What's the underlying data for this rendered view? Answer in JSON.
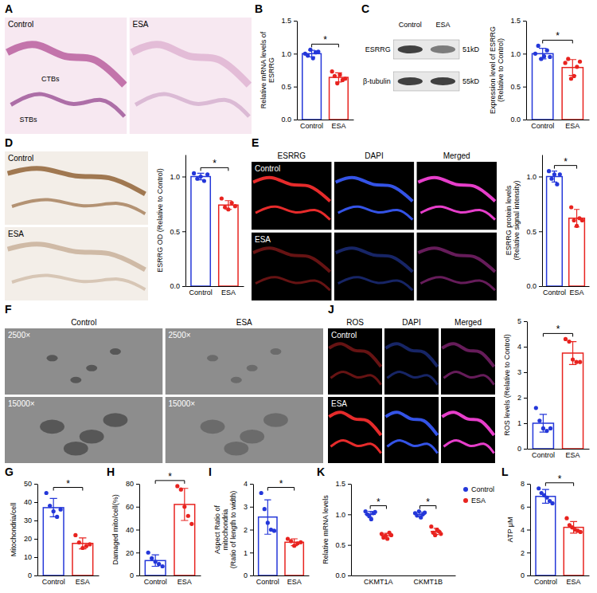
{
  "chart_data": [
    {
      "panel": "B",
      "type": "bar",
      "ylabel": "Relative mRNA levels of ESRRG",
      "categories": [
        "Control",
        "ESA"
      ],
      "values": [
        1.0,
        0.64
      ],
      "errors": [
        0.05,
        0.07
      ],
      "points": [
        [
          1.0,
          0.97,
          1.06,
          0.93,
          1.02,
          1.03
        ],
        [
          0.73,
          0.66,
          0.55,
          0.68,
          0.6,
          0.62
        ]
      ],
      "colors": [
        "#2437d9",
        "#e8231f"
      ],
      "ylim": [
        0,
        1.5
      ],
      "yticks": [
        {
          "value": 0,
          "label": "0.0"
        },
        0.5,
        {
          "value": 1,
          "label": "1.0"
        },
        1.5
      ],
      "significance": "*"
    },
    {
      "type": "bar",
      "ylabel": "Expression level of ESRRG (Relative to Control)",
      "categories": [
        "Control",
        "ESA"
      ],
      "values": [
        1.0,
        0.79
      ],
      "errors": [
        0.08,
        0.12
      ],
      "points": [
        [
          1.0,
          1.12,
          0.92,
          0.96,
          1.05,
          0.95
        ],
        [
          0.86,
          0.92,
          0.62,
          0.66,
          0.8,
          0.88
        ]
      ],
      "colors": [
        "#2437d9",
        "#e8231f"
      ],
      "ylim": [
        0,
        1.5
      ],
      "yticks": [
        {
          "value": 0,
          "label": "0.0"
        },
        0.5,
        {
          "value": 1,
          "label": "1.0"
        },
        1.5
      ],
      "significance": "*"
    },
    {
      "type": "bar",
      "ylabel": "ESRRG OD (Relative to Control)",
      "categories": [
        "Control",
        "ESA"
      ],
      "values": [
        1.0,
        0.74
      ],
      "errors": [
        0.03,
        0.04
      ],
      "points": [
        [
          1.03,
          0.98,
          1.0,
          0.96,
          1.02
        ],
        [
          0.8,
          0.72,
          0.7,
          0.76,
          0.73
        ]
      ],
      "colors": [
        "#2437d9",
        "#e8231f"
      ],
      "ylim": [
        0,
        1.2
      ],
      "yticks": [
        {
          "value": 0,
          "label": "0.0"
        },
        0.5,
        {
          "value": 1,
          "label": "1.0"
        }
      ],
      "significance": "*"
    },
    {
      "type": "bar",
      "ylabel": "ESRRG protein levels (Relative signal intensity)",
      "categories": [
        "Control",
        "ESA"
      ],
      "values": [
        1.0,
        0.62
      ],
      "errors": [
        0.05,
        0.08
      ],
      "points": [
        [
          1.05,
          0.98,
          1.02,
          0.93,
          1.02
        ],
        [
          0.72,
          0.6,
          0.55,
          0.62,
          0.6
        ]
      ],
      "colors": [
        "#2437d9",
        "#e8231f"
      ],
      "ylim": [
        0,
        1.2
      ],
      "yticks": [
        {
          "value": 0,
          "label": "0.0"
        },
        0.5,
        {
          "value": 1,
          "label": "1.0"
        }
      ],
      "significance": "*"
    },
    {
      "panel": "G",
      "type": "bar",
      "ylabel": "Mitochondria/cell",
      "categories": [
        "Control",
        "ESA"
      ],
      "values": [
        37,
        17.5
      ],
      "errors": [
        5,
        3
      ],
      "points": [
        [
          45,
          38,
          35,
          32,
          36
        ],
        [
          22,
          18,
          15,
          16,
          17
        ]
      ],
      "colors": [
        "#2437d9",
        "#e8231f"
      ],
      "ylim": [
        0,
        50
      ],
      "yticks": [
        0,
        10,
        20,
        30,
        40,
        50
      ],
      "significance": "*"
    },
    {
      "panel": "H",
      "type": "bar",
      "ylabel": "Damaged mito/cell(%)",
      "categories": [
        "Control",
        "ESA"
      ],
      "values": [
        13,
        62
      ],
      "errors": [
        5,
        14
      ],
      "points": [
        [
          20,
          15,
          12,
          10,
          8
        ],
        [
          78,
          75,
          60,
          52,
          45
        ]
      ],
      "colors": [
        "#2437d9",
        "#e8231f"
      ],
      "ylim": [
        0,
        80
      ],
      "yticks": [
        0,
        20,
        40,
        60,
        80
      ],
      "significance": "*"
    },
    {
      "panel": "I",
      "type": "bar",
      "ylabel": "Aspect Ratio of mitochondria (Ratio of length to width)",
      "categories": [
        "Control",
        "ESA"
      ],
      "values": [
        2.55,
        1.45
      ],
      "errors": [
        0.75,
        0.15
      ],
      "points": [
        [
          3.6,
          2.9,
          2.3,
          2.0,
          1.95
        ],
        [
          1.6,
          1.5,
          1.3,
          1.4,
          1.45
        ]
      ],
      "colors": [
        "#2437d9",
        "#e8231f"
      ],
      "ylim": [
        0,
        4
      ],
      "yticks": [
        0,
        1,
        2,
        3,
        4
      ],
      "significance": "*"
    },
    {
      "type": "bar",
      "ylabel": "ROS levels (Relative to Control)",
      "categories": [
        "Control",
        "ESA"
      ],
      "values": [
        1.0,
        3.75
      ],
      "errors": [
        0.35,
        0.45
      ],
      "points": [
        [
          1.6,
          1.1,
          0.8,
          0.7,
          0.8
        ],
        [
          4.3,
          4.2,
          3.5,
          3.4,
          3.4
        ]
      ],
      "colors": [
        "#2437d9",
        "#e8231f"
      ],
      "ylim": [
        0,
        5
      ],
      "yticks": [
        0,
        1,
        2,
        3,
        4,
        5
      ],
      "significance": "*"
    },
    {
      "panel": "K",
      "type": "scatter",
      "ylabel": "Relative mRNA levels",
      "categories": [
        "CKMT1A",
        "CKMT1B"
      ],
      "series": [
        {
          "name": "Control",
          "color": "#2437d9",
          "values": [
            1.0,
            1.0
          ],
          "errors": [
            0.05,
            0.04
          ],
          "points": [
            [
              1.05,
              1.0,
              0.97,
              0.92,
              1.02,
              1.04
            ],
            [
              1.02,
              0.98,
              1.05,
              0.95,
              1.0,
              1.03
            ]
          ]
        },
        {
          "name": "ESA",
          "color": "#e8231f",
          "values": [
            0.65,
            0.72
          ],
          "errors": [
            0.04,
            0.05
          ],
          "points": [
            [
              0.68,
              0.62,
              0.65,
              0.6,
              0.7,
              0.66
            ],
            [
              0.8,
              0.7,
              0.66,
              0.75,
              0.72,
              0.68
            ]
          ]
        }
      ],
      "ylim": [
        0,
        1.5
      ],
      "yticks": [
        {
          "value": 0,
          "label": "0.0"
        },
        0.5,
        {
          "value": 1,
          "label": "1.0"
        },
        1.5
      ],
      "legend": "right",
      "significance": [
        "*",
        "*"
      ]
    },
    {
      "panel": "L",
      "type": "bar",
      "ylabel": "ATP μM",
      "categories": [
        "Control",
        "ESA"
      ],
      "values": [
        6.9,
        4.2
      ],
      "errors": [
        0.6,
        0.5
      ],
      "points": [
        [
          7.6,
          7.2,
          7.0,
          6.8,
          6.5,
          6.3
        ],
        [
          5.0,
          4.4,
          4.2,
          4.0,
          3.9,
          3.8
        ]
      ],
      "colors": [
        "#2437d9",
        "#e8231f"
      ],
      "ylim": [
        0,
        8
      ],
      "yticks": [
        0,
        2,
        4,
        6,
        8
      ],
      "significance": "*"
    }
  ],
  "image_panels": [
    {
      "letter": "A",
      "cell_labels": [
        [
          "Control",
          "ESA"
        ]
      ],
      "annotations": [
        "CTBs",
        "STBs"
      ]
    },
    {
      "letter": "C",
      "columns": [
        "Control",
        "ESA"
      ],
      "bands": [
        {
          "label": "ESRRG",
          "size": "51kD"
        },
        {
          "label": "β-tubulin",
          "size": "55kD"
        }
      ]
    },
    {
      "letter": "D",
      "cell_labels": [
        [
          "Control"
        ],
        [
          "ESA"
        ]
      ]
    },
    {
      "letter": "E",
      "columns": [
        "ESRRG",
        "DAPI",
        "Merged"
      ],
      "cell_labels": [
        [
          "Control",
          null,
          null
        ],
        [
          "ESA",
          null,
          null
        ]
      ]
    },
    {
      "letter": "F",
      "columns": [
        "Control",
        "ESA"
      ],
      "cell_labels": [
        [
          "2500×",
          "2500×"
        ],
        [
          "15000×",
          "15000×"
        ]
      ]
    },
    {
      "letter": "J",
      "columns": [
        "ROS",
        "DAPI",
        "Merged"
      ],
      "cell_labels": [
        [
          "Control",
          null,
          null
        ],
        [
          "ESA",
          null,
          null
        ]
      ]
    }
  ]
}
